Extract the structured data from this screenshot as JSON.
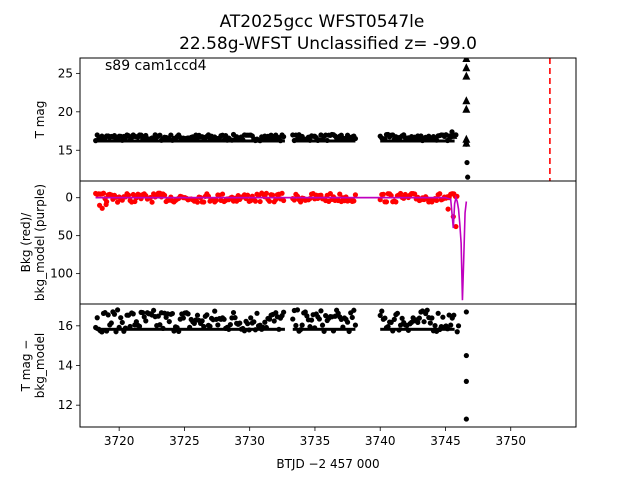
{
  "title_line1": "AT2025gcc  WFST0547le",
  "title_line2": "22.58g-WFST Unclassified z= -99.0",
  "annotation": "s89 cam1ccd4",
  "xlabel": "BTJD −2 457 000",
  "colors": {
    "points": "#000000",
    "bkg": "#ff0000",
    "bkg_model": "#bf00bf",
    "marker_line": "#ff0000"
  },
  "chart_data": [
    {
      "type": "scatter",
      "panel": "top",
      "ylabel": "T mag",
      "xlim": [
        3717,
        3755
      ],
      "ylim": [
        27,
        11
      ],
      "y_inverted": true,
      "yticks": [
        15,
        20,
        25
      ],
      "band_segments": [
        [
          3718.2,
          3732.7,
          16.4,
          16.9
        ],
        [
          3733.3,
          3738.1,
          16.4,
          16.9
        ],
        [
          3740.0,
          3745.7,
          16.4,
          16.9
        ]
      ],
      "scatter_points": [
        [
          3745.5,
          17.4
        ],
        [
          3745.8,
          17.0
        ],
        [
          3746.6,
          15.8
        ],
        [
          3746.6,
          16.2
        ],
        [
          3746.65,
          13.4
        ],
        [
          3746.7,
          11.5
        ]
      ],
      "triangles": [
        [
          3745.6,
          17.0
        ],
        [
          3746.6,
          16.5
        ],
        [
          3746.6,
          16.0
        ],
        [
          3746.6,
          20.4
        ],
        [
          3746.6,
          21.5
        ],
        [
          3746.6,
          24.7
        ],
        [
          3746.6,
          25.8
        ],
        [
          3746.6,
          27.0
        ]
      ],
      "vline_x": 3753.0
    },
    {
      "type": "line",
      "panel": "middle",
      "ylabel": "Bkg (red)/\nbkg_model (purple)",
      "ylim": [
        -22,
        140
      ],
      "yticks": [
        0,
        50,
        100
      ],
      "series": [
        {
          "name": "Bkg",
          "color": "#ff0000",
          "segments": [
            [
              3718.2,
              3732.7
            ],
            [
              3733.3,
              3738.1
            ],
            [
              3740.0,
              3745.9
            ]
          ],
          "typical_low": -6,
          "typical_high": 6
        },
        {
          "name": "bkg_model",
          "color": "#bf00bf",
          "x": [
            3718.2,
            3745.0,
            3745.4,
            3745.6,
            3745.7,
            3745.8,
            3745.9,
            3746.0,
            3746.1,
            3746.2,
            3746.3,
            3746.4,
            3746.5,
            3746.6
          ],
          "y": [
            0,
            0,
            2,
            40,
            8,
            0,
            5,
            15,
            35,
            60,
            135,
            80,
            20,
            5
          ]
        }
      ],
      "red_spikes": [
        [
          3718.5,
          10
        ],
        [
          3718.7,
          14
        ],
        [
          3719.0,
          9
        ],
        [
          3745.2,
          15
        ],
        [
          3745.6,
          25
        ],
        [
          3745.8,
          38
        ]
      ]
    },
    {
      "type": "scatter",
      "panel": "bottom",
      "ylabel": "T mag −\nbkg_model",
      "ylim": [
        17.1,
        10.9
      ],
      "y_inverted": true,
      "yticks": [
        12,
        14,
        16
      ],
      "band_segments": [
        [
          3718.2,
          3732.7,
          15.9,
          16.6
        ],
        [
          3733.3,
          3738.1,
          15.9,
          16.6
        ],
        [
          3740.0,
          3745.7,
          15.9,
          16.6
        ]
      ],
      "scatter_points": [
        [
          3745.9,
          15.7
        ],
        [
          3746.0,
          16.0
        ],
        [
          3746.6,
          11.3
        ],
        [
          3746.6,
          13.2
        ],
        [
          3746.6,
          14.5
        ],
        [
          3746.6,
          16.7
        ]
      ]
    }
  ],
  "xticks": [
    3720,
    3725,
    3730,
    3735,
    3740,
    3745,
    3750
  ]
}
